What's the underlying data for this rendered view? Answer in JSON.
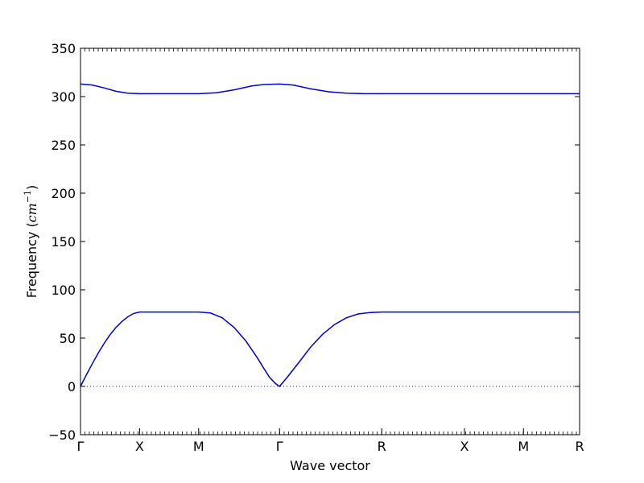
{
  "chart_data": {
    "type": "line",
    "title": "",
    "xlabel": "Wave vector",
    "ylabel_text": "Frequency (",
    "ylabel_math_base": "cm",
    "ylabel_math_exp": "−1",
    "ylabel_close": ")",
    "ylim": [
      -50,
      350
    ],
    "yticks": [
      -50,
      0,
      50,
      100,
      150,
      200,
      250,
      300,
      350
    ],
    "xlim": [
      0,
      8.45
    ],
    "xticks": [
      {
        "pos": 0.0,
        "label": "Γ"
      },
      {
        "pos": 1.0,
        "label": "X"
      },
      {
        "pos": 2.0,
        "label": "M"
      },
      {
        "pos": 3.37,
        "label": "Γ"
      },
      {
        "pos": 5.1,
        "label": "R"
      },
      {
        "pos": 6.5,
        "label": "X"
      },
      {
        "pos": 7.5,
        "label": "M"
      },
      {
        "pos": 8.45,
        "label": "R"
      }
    ],
    "grid": false,
    "zero_line": {
      "y": 0,
      "style": "dotted",
      "color": "#0000ff"
    },
    "series_color": "#0000cc",
    "series": [
      {
        "x": [
          0,
          0.1,
          0.2,
          0.3,
          0.4,
          0.5,
          0.6,
          0.7,
          0.8,
          0.9,
          1.0,
          1.5,
          2.0,
          2.2,
          2.4,
          2.6,
          2.8,
          3.0,
          3.1,
          3.2,
          3.3,
          3.37,
          3.5,
          3.7,
          3.9,
          4.1,
          4.3,
          4.5,
          4.7,
          4.9,
          5.1,
          6.5,
          7.5,
          8.45
        ],
        "y": [
          0,
          12,
          23.5,
          34.5,
          44.5,
          53.5,
          61,
          67,
          72,
          75.5,
          77,
          77,
          77,
          76,
          71,
          61,
          47,
          29,
          19,
          9.5,
          3,
          0,
          9.5,
          25,
          41,
          54,
          64,
          71,
          75,
          76.5,
          77,
          77,
          77,
          77
        ]
      },
      {
        "x": [
          0,
          0.2,
          0.4,
          0.6,
          0.8,
          1.0,
          1.5,
          2.0,
          2.3,
          2.6,
          2.9,
          3.1,
          3.37,
          3.6,
          3.9,
          4.2,
          4.5,
          4.8,
          5.1,
          6.5,
          7.5,
          8.45
        ],
        "y": [
          313,
          312,
          309,
          305.5,
          303.5,
          303,
          303,
          303,
          304,
          307,
          311,
          312.5,
          313,
          312,
          308,
          305,
          303.5,
          303,
          303,
          303,
          303,
          303
        ]
      }
    ]
  }
}
